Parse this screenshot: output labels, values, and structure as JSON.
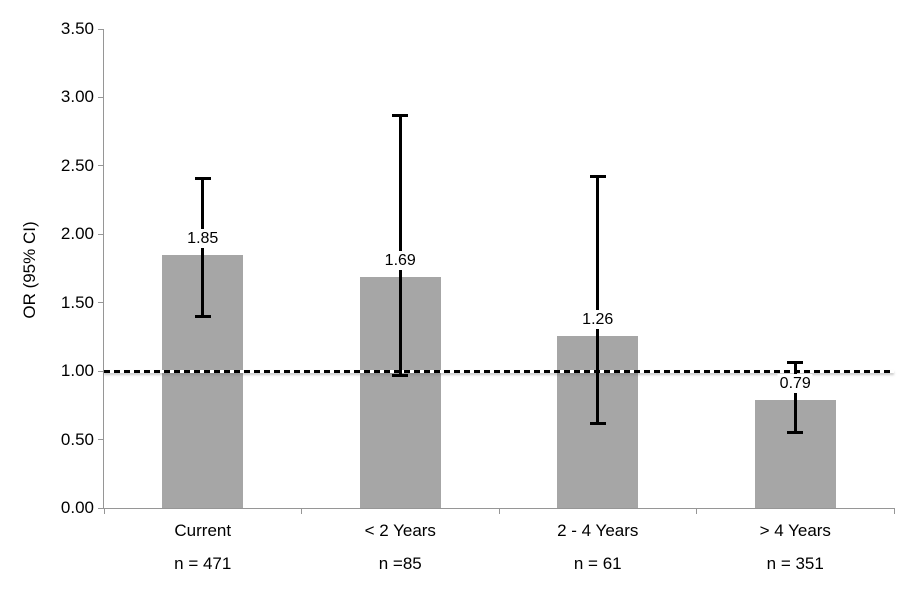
{
  "chart_data": {
    "type": "bar",
    "title": "",
    "xlabel": "",
    "ylabel": "OR (95% CI)",
    "ylim": [
      0,
      3.5
    ],
    "ytick_step": 0.5,
    "ytick_labels": [
      "0.00",
      "0.50",
      "1.00",
      "1.50",
      "2.00",
      "2.50",
      "3.00",
      "3.50"
    ],
    "reference_line": 1.0,
    "grid": "off",
    "legend": "none",
    "categories": [
      {
        "label": "Current",
        "sublabel": "n = 471",
        "value": 1.85,
        "value_label": "1.85",
        "ci_low": 1.4,
        "ci_high": 2.41
      },
      {
        "label": "< 2 Years",
        "sublabel": "n =85",
        "value": 1.69,
        "value_label": "1.69",
        "ci_low": 0.97,
        "ci_high": 2.87
      },
      {
        "label": "2 - 4 Years",
        "sublabel": "n = 61",
        "value": 1.26,
        "value_label": "1.26",
        "ci_low": 0.62,
        "ci_high": 2.42
      },
      {
        "label": "> 4 Years",
        "sublabel": "n = 351",
        "value": 0.79,
        "value_label": "0.79",
        "ci_low": 0.55,
        "ci_high": 1.06
      }
    ],
    "colors": {
      "bar_fill": "#a6a6a6",
      "axis_line": "#969696",
      "error_bar": "#000000",
      "reference_line": "#000000",
      "text": "#000000",
      "background": "#ffffff"
    }
  }
}
